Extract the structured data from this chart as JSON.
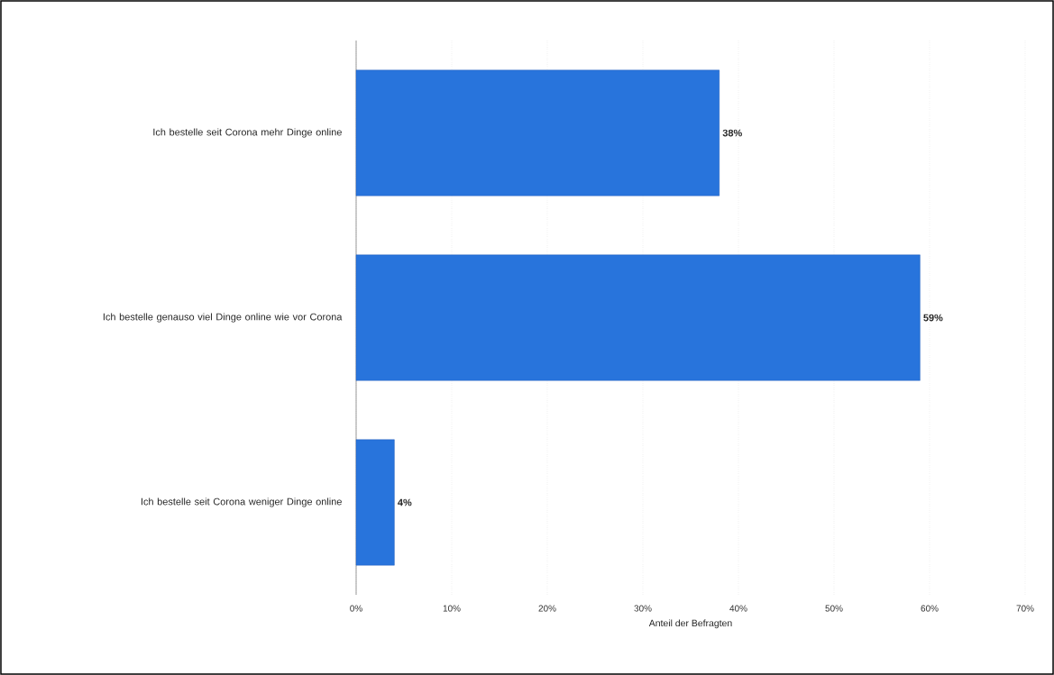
{
  "chart_data": {
    "type": "bar",
    "orientation": "horizontal",
    "xlabel": "Anteil der Befragten",
    "categories": [
      "Ich bestelle seit Corona mehr Dinge online",
      "Ich bestelle genauso viel Dinge online wie vor Corona",
      "Ich bestelle seit Corona weniger Dinge online"
    ],
    "values": [
      38,
      59,
      4
    ],
    "value_labels": [
      "38%",
      "59%",
      "4%"
    ],
    "color": "#2874dc",
    "xlim": [
      0,
      70
    ],
    "xticks": [
      {
        "value": 0,
        "label": "0%"
      },
      {
        "value": 10,
        "label": "10%"
      },
      {
        "value": 20,
        "label": "20%"
      },
      {
        "value": 30,
        "label": "30%"
      },
      {
        "value": 40,
        "label": "40%"
      },
      {
        "value": 50,
        "label": "50%"
      },
      {
        "value": 60,
        "label": "60%"
      },
      {
        "value": 70,
        "label": "70%"
      }
    ],
    "grid": "x"
  }
}
